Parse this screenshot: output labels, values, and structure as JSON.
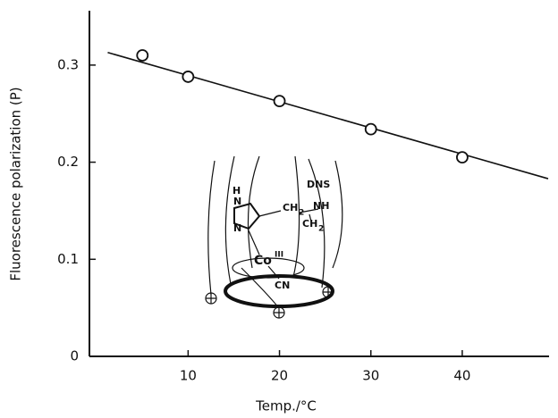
{
  "chart_data": {
    "type": "scatter",
    "x_label": "Temp./°C",
    "y_label": "Fluorescence polarization (P)",
    "x": [
      5,
      10,
      20,
      30,
      40
    ],
    "values": [
      0.31,
      0.288,
      0.263,
      0.234,
      0.205
    ],
    "fit": {
      "x": [
        1.2,
        49.4
      ],
      "y": [
        0.313,
        0.183
      ]
    },
    "xlim": [
      -0.8,
      49.5
    ],
    "ylim": [
      0,
      0.356
    ],
    "xticks": [
      10,
      20,
      30,
      40
    ],
    "yticks": [
      0,
      0.1,
      0.2,
      0.3
    ],
    "color": "#111111",
    "inset_labels": [
      "DNS",
      "H",
      "N",
      "CH",
      "2",
      "NH",
      "N",
      "CH",
      "2",
      "Co",
      "III",
      "CN"
    ]
  }
}
